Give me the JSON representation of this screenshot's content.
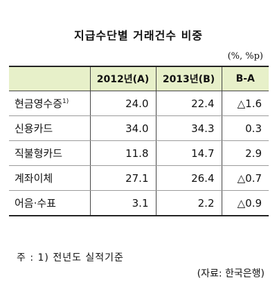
{
  "title": "지급수단별 거래건수 비중",
  "unit": "(%, %p)",
  "table": {
    "headers": [
      "",
      "2012년(A)",
      "2013년(B)",
      "B-A"
    ],
    "rows": [
      {
        "label": "현금영수증",
        "label_sup": "1)",
        "a": "24.0",
        "b": "22.4",
        "diff": "△1.6"
      },
      {
        "label": "신용카드",
        "label_sup": "",
        "a": "34.0",
        "b": "34.3",
        "diff": "0.3"
      },
      {
        "label": "직불형카드",
        "label_sup": "",
        "a": "11.8",
        "b": "14.7",
        "diff": "2.9"
      },
      {
        "label": "계좌이체",
        "label_sup": "",
        "a": "27.1",
        "b": "26.4",
        "diff": "△0.7"
      },
      {
        "label": "어음·수표",
        "label_sup": "",
        "a": "3.1",
        "b": "2.2",
        "diff": "△0.9"
      }
    ]
  },
  "note": "주 : 1) 전년도 실적기준",
  "source": "(자료: 한국은행)",
  "colors": {
    "header_bg": "#e7f0c9",
    "border": "#222222"
  }
}
